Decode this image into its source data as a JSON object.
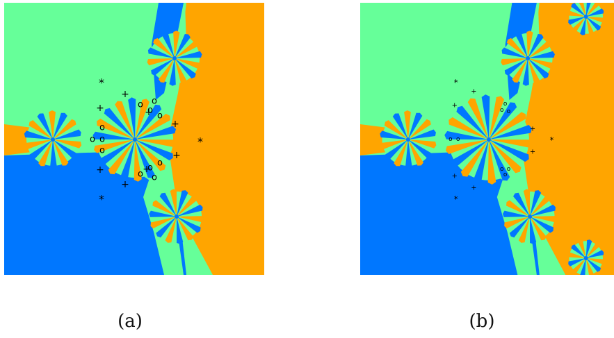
{
  "figure": {
    "captions": [
      "(a)",
      "(b)"
    ],
    "colors": {
      "orange": "#ffa500",
      "mint": "#66ff99",
      "blue": "#0077ff",
      "marker": "#000000"
    },
    "marker_glyphs": {
      "star": "*",
      "plus": "+",
      "circle": "o"
    }
  }
}
